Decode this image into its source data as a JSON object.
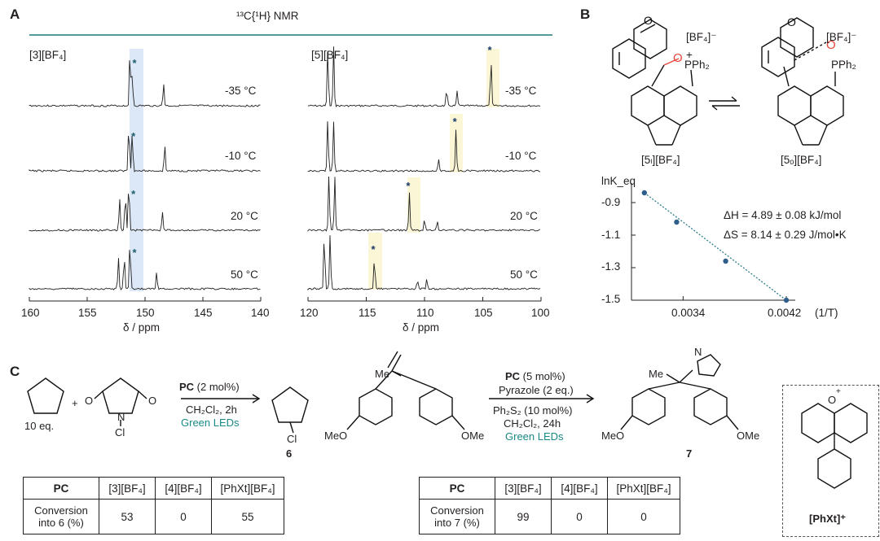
{
  "panel_a": {
    "label": "A",
    "header": "¹³C{¹H} NMR",
    "left_compound": "[3][BF₄]",
    "right_compound": "[5][BF₄]",
    "temperatures": [
      "-35 °C",
      "-10 °C",
      "20 °C",
      "50 °C"
    ],
    "left_axis_ticks": [
      "160",
      "155",
      "150",
      "145",
      "140"
    ],
    "right_axis_ticks": [
      "120",
      "115",
      "110",
      "105",
      "100"
    ],
    "xlabel": "δ / ppm",
    "peak_marker": "*"
  },
  "panel_b": {
    "label": "B",
    "counterion": "[BF₄]⁻",
    "pph2": "PPh₂",
    "plus": "+",
    "o_label": "O",
    "left_compound": "[5ₗ][BF₄]",
    "right_compound": "[5ₒ][BF₄]",
    "equilibrium": "⇌"
  },
  "chart_data": {
    "type": "scatter",
    "title": "",
    "ylabel": "lnK_eq",
    "xlabel": "(1/T)",
    "x_ticks": [
      "0.0034",
      "0.0042"
    ],
    "y_ticks": [
      "-0.9",
      "-1.1",
      "-1.3",
      "-1.5"
    ],
    "ylim": [
      -1.5,
      -0.8
    ],
    "xlim": [
      0.003,
      0.0042
    ],
    "points": [
      {
        "x": 0.0031,
        "y": -0.84
      },
      {
        "x": 0.00335,
        "y": -1.02
      },
      {
        "x": 0.00373,
        "y": -1.26
      },
      {
        "x": 0.0042,
        "y": -1.5
      }
    ],
    "fit_line": true,
    "annotations": [
      "ΔH = 4.89 ± 0.08 kJ/mol",
      "ΔS = 8.14 ± 0.29 J/mol•K"
    ]
  },
  "panel_c": {
    "label": "C",
    "rxn1": {
      "equiv": "10 eq.",
      "plus": "+",
      "nh_label": "N",
      "cl_label": "Cl",
      "o_label": "O",
      "cond_pc": "PC",
      "cond_pc_amount": " (2 mol%)",
      "cond_solvent": "CH₂Cl₂, 2h",
      "cond_light": "Green LEDs",
      "product_cl": "Cl",
      "product_num": "6"
    },
    "rxn2": {
      "me_top": "Me",
      "meo_left": "MeO",
      "ome_right": "OMe",
      "cond_pc": "PC",
      "cond_pc_amount": " (5 mol%)",
      "cond_pyrazole": "Pyrazole (2 eq.)",
      "cond_ph2s2": "Ph₂S₂ (10 mol%)",
      "cond_solvent": "CH₂Cl₂, 24h",
      "cond_light": "Green LEDs",
      "product_me": "Me",
      "product_n": "N",
      "product_meo": "MeO",
      "product_ome": "OMe",
      "product_num": "7"
    },
    "table1": {
      "headers": [
        "PC",
        "[3][BF₄]",
        "[4][BF₄]",
        "[PhXt][BF₄]"
      ],
      "row_label": "Conversion into 6 (%)",
      "values": [
        "53",
        "0",
        "55"
      ]
    },
    "table2": {
      "headers": [
        "PC",
        "[3][BF₄]",
        "[4][BF₄]",
        "[PhXt][BF₄]"
      ],
      "row_label": "Conversion into 7 (%)",
      "values": [
        "99",
        "0",
        "0"
      ]
    },
    "catalyst_label": "[PhXt]⁺",
    "catalyst_o": "O",
    "catalyst_plus": "+"
  }
}
